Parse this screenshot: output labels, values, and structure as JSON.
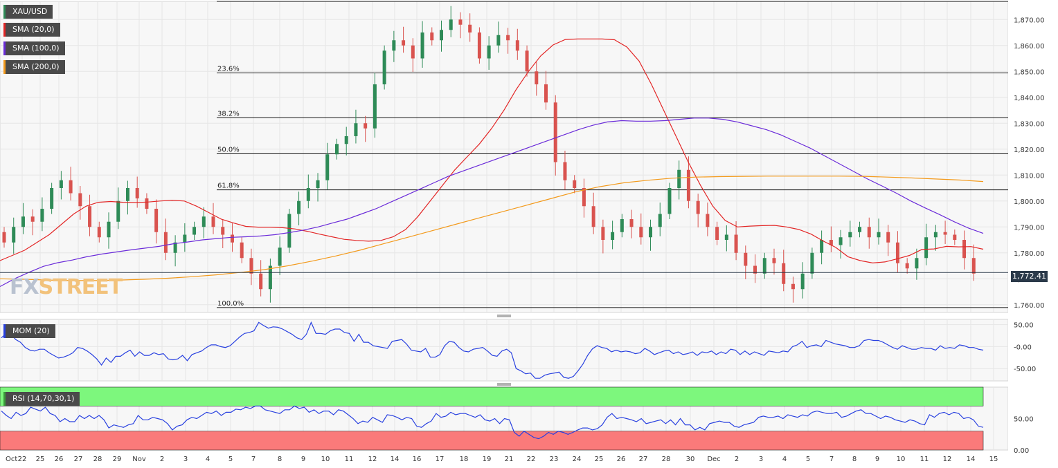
{
  "watermark": {
    "fx": "FX",
    "street": "STREET"
  },
  "legends": [
    {
      "label": "XAU/USD",
      "color": "#2e8b57"
    },
    {
      "label": "SMA (20,0)",
      "color": "#e32626"
    },
    {
      "label": "SMA (100,0)",
      "color": "#6a2bd9"
    },
    {
      "label": "SMA (200,0)",
      "color": "#f39a1c"
    },
    {
      "label": "MOM (20)",
      "color": "#2840e0"
    },
    {
      "label": "RSI (14,70,30,1)",
      "color": "#3a9a3a"
    }
  ],
  "price_tag": "1,772.41",
  "chart_data": [
    {
      "type": "candlestick",
      "series": [
        {
          "name": "XAU/USD",
          "color_up": "#2e8b57",
          "color_down": "#d9534f"
        },
        {
          "name": "SMA (20,0)",
          "color": "#e32626",
          "values": [
            1777,
            1779,
            1781,
            1784,
            1787,
            1791,
            1795,
            1798,
            1799.5,
            1799.8,
            1799.5,
            1799.4,
            1799.6,
            1800,
            1800.3,
            1800,
            1798,
            1795.5,
            1793,
            1791.5,
            1790.2,
            1789.9,
            1789.9,
            1789.7,
            1789.2,
            1788.3,
            1787.2,
            1786.2,
            1785.2,
            1784.8,
            1784.5,
            1784.8,
            1786.2,
            1789,
            1794,
            1800,
            1806,
            1812,
            1817,
            1822,
            1828,
            1835,
            1843,
            1850,
            1856,
            1860.2,
            1862.3,
            1862.5,
            1862.5,
            1862.5,
            1862.2,
            1859.4,
            1854,
            1845,
            1835,
            1825,
            1815,
            1806,
            1798,
            1792.5,
            1790,
            1790.3,
            1790.5,
            1790.6,
            1790,
            1789,
            1787.2,
            1784.5,
            1782.1,
            1778.5,
            1777,
            1776.1,
            1776.5,
            1777.7,
            1779,
            1781.3,
            1781.5,
            1782.5,
            1782.3,
            1782.4,
            1781.4
          ],
          "x_start": 0,
          "x_step": 1
        },
        {
          "name": "SMA (100,0)",
          "color": "#6a2bd9",
          "values": [
            1767,
            1770,
            1772.5,
            1774.8,
            1776.2,
            1777.2,
            1778.5,
            1779.5,
            1780.3,
            1781.1,
            1781.8,
            1782.5,
            1783.5,
            1784.2,
            1785,
            1785.5,
            1786,
            1786.2,
            1786.5,
            1787,
            1787.8,
            1788.8,
            1790,
            1791.5,
            1793,
            1795,
            1797,
            1799.5,
            1802,
            1804.5,
            1807,
            1809.5,
            1811.5,
            1813.5,
            1815.5,
            1817.5,
            1819.5,
            1821.5,
            1823.5,
            1825.5,
            1827.5,
            1829.2,
            1830.5,
            1831,
            1830.8,
            1830.8,
            1831,
            1831.5,
            1832,
            1832,
            1831.5,
            1830.5,
            1829,
            1827.5,
            1825.5,
            1823,
            1820.5,
            1817.5,
            1814.5,
            1811.5,
            1808.5,
            1805.8,
            1803,
            1800,
            1797.3,
            1794.7,
            1792,
            1789.5,
            1787.5
          ],
          "x_start": 0,
          "x_step": 1
        },
        {
          "name": "SMA (200,0)",
          "color": "#f39a1c",
          "values": [
            1770,
            1769.8,
            1769.5,
            1769.3,
            1769.3,
            1769.5,
            1769.8,
            1770.2,
            1770.8,
            1771.5,
            1772.4,
            1773.5,
            1775,
            1776.8,
            1778.8,
            1781,
            1783.5,
            1786,
            1788.5,
            1791,
            1793.5,
            1796,
            1798.5,
            1801,
            1803.5,
            1805.5,
            1807,
            1808,
            1808.8,
            1809.2,
            1809.4,
            1809.5,
            1809.6,
            1809.6,
            1809.6,
            1809.6,
            1809.5,
            1809.2,
            1808.9,
            1808.5,
            1808.1,
            1807.5
          ],
          "x_start": 0,
          "x_step": 1
        }
      ],
      "ylim": [
        1757,
        1877
      ],
      "y_ticks": [
        "1,760.00",
        "1,770.00",
        "1,780.00",
        "1,790.00",
        "1,800.00",
        "1,810.00",
        "1,820.00",
        "1,830.00",
        "1,840.00",
        "1,850.00",
        "1,860.00",
        "1,870.00"
      ],
      "y_tick_values": [
        1760,
        1770,
        1780,
        1790,
        1800,
        1810,
        1820,
        1830,
        1840,
        1850,
        1860,
        1870
      ],
      "fibonacci": [
        {
          "label": "",
          "value": 1877
        },
        {
          "label": "23.6%",
          "value": 1849.4
        },
        {
          "label": "38.2%",
          "value": 1832.1
        },
        {
          "label": "50.0%",
          "value": 1818.2
        },
        {
          "label": "61.8%",
          "value": 1804.3
        },
        {
          "label": "100.0%",
          "value": 1758.9
        }
      ],
      "last_price": 1772.41,
      "grid": true
    },
    {
      "type": "line",
      "series": [
        {
          "name": "MOM (20)",
          "color": "#2840e0",
          "values": [
            20,
            30,
            28,
            16,
            10,
            -2,
            -8,
            -10,
            -6,
            -6,
            -14,
            -20,
            -26,
            -24,
            -20,
            -14,
            -2,
            -4,
            -10,
            -18,
            -28,
            -42,
            -26,
            -36,
            -22,
            -22,
            -14,
            -8,
            -22,
            -12,
            -20,
            -20,
            -14,
            -18,
            -16,
            -28,
            -30,
            -28,
            -20,
            -32,
            -18,
            -14,
            -10,
            -2,
            4,
            4,
            0,
            -2,
            2,
            12,
            22,
            30,
            32,
            36,
            55,
            48,
            42,
            45,
            44,
            40,
            34,
            28,
            20,
            16,
            28,
            55,
            30,
            30,
            28,
            36,
            40,
            40,
            32,
            30,
            12,
            28,
            10,
            10,
            2,
            0,
            -2,
            -4,
            12,
            14,
            16,
            6,
            -8,
            -10,
            -12,
            -4,
            -24,
            -24,
            -18,
            2,
            12,
            10,
            -2,
            -10,
            -12,
            -6,
            -4,
            -2,
            -10,
            -20,
            -22,
            -10,
            -6,
            -14,
            -50,
            -55,
            -62,
            -60,
            -72,
            -72,
            -65,
            -62,
            -60,
            -58,
            -70,
            -72,
            -68,
            -55,
            -40,
            -20,
            -5,
            2,
            -2,
            -4,
            -12,
            -8,
            -12,
            -10,
            -12,
            -16,
            -14,
            -4,
            -10,
            -18,
            -14,
            -10,
            -8,
            -16,
            -12,
            -18,
            -16,
            -12,
            -20,
            -12,
            -14,
            -10,
            -18,
            -12,
            -16,
            -6,
            -8,
            -18,
            -10,
            -18,
            -12,
            -16,
            -20,
            -10,
            -12,
            -14,
            -10,
            -12,
            0,
            4,
            12,
            -2,
            2,
            4,
            0,
            14,
            10,
            6,
            4,
            2,
            -2,
            -2,
            2,
            14,
            16,
            14,
            14,
            10,
            4,
            -2,
            -6,
            2,
            -2,
            -6,
            -6,
            -2,
            -4,
            -4,
            -8,
            2,
            -4,
            -2,
            -4,
            4,
            2,
            -2,
            -2,
            -6,
            -8
          ]
        }
      ],
      "ylim": [
        -78,
        62
      ],
      "y_ticks": [
        "50.00",
        "-0.00",
        "-50.00"
      ],
      "y_tick_values": [
        50,
        0,
        -50
      ]
    },
    {
      "type": "line",
      "series": [
        {
          "name": "RSI (14,70,30,1)",
          "color": "#2840e0",
          "values": [
            62,
            55,
            50,
            60,
            55,
            58,
            68,
            65,
            62,
            68,
            58,
            55,
            45,
            50,
            45,
            45,
            55,
            50,
            55,
            50,
            55,
            48,
            35,
            40,
            38,
            36,
            40,
            42,
            55,
            48,
            48,
            52,
            50,
            48,
            42,
            32,
            38,
            40,
            48,
            52,
            50,
            55,
            60,
            58,
            62,
            55,
            60,
            60,
            65,
            64,
            68,
            66,
            70,
            70,
            64,
            62,
            60,
            58,
            64,
            64,
            70,
            66,
            68,
            60,
            64,
            58,
            62,
            62,
            56,
            64,
            62,
            56,
            50,
            42,
            46,
            44,
            52,
            48,
            44,
            56,
            55,
            52,
            48,
            52,
            50,
            38,
            36,
            42,
            46,
            58,
            52,
            54,
            60,
            56,
            58,
            58,
            55,
            52,
            56,
            48,
            46,
            50,
            42,
            50,
            48,
            28,
            22,
            30,
            25,
            20,
            18,
            22,
            28,
            25,
            30,
            28,
            25,
            28,
            32,
            35,
            35,
            32,
            34,
            40,
            52,
            58,
            50,
            52,
            50,
            48,
            45,
            50,
            42,
            44,
            46,
            48,
            42,
            48,
            40,
            50,
            40,
            40,
            32,
            36,
            32,
            42,
            44,
            46,
            44,
            44,
            38,
            36,
            40,
            42,
            44,
            52,
            54,
            52,
            52,
            54,
            50,
            56,
            54,
            52,
            56,
            54,
            60,
            62,
            60,
            58,
            58,
            60,
            52,
            54,
            58,
            62,
            64,
            58,
            58,
            54,
            50,
            54,
            52,
            48,
            46,
            44,
            48,
            46,
            42,
            40,
            56,
            52,
            58,
            60,
            56,
            60,
            58,
            50,
            52,
            48,
            38,
            36
          ]
        }
      ],
      "ylim": [
        0,
        100
      ],
      "overbought": 70,
      "oversold": 30,
      "y_ticks": [
        "50.00",
        "0.00"
      ],
      "y_tick_values": [
        50,
        0
      ]
    }
  ],
  "x_axis": {
    "labels": [
      "Oct",
      "22",
      "25",
      "26",
      "27",
      "28",
      "29",
      "Nov",
      "2",
      "3",
      "4",
      "5",
      "7",
      "8",
      "9",
      "10",
      "11",
      "12",
      "14",
      "16",
      "17",
      "18",
      "19",
      "21",
      "22",
      "23",
      "24",
      "25",
      "26",
      "27",
      "28",
      "30",
      "Dec",
      "2",
      "3",
      "4",
      "5",
      "7",
      "8",
      "9",
      "10",
      "11",
      "12",
      "14",
      "15"
    ]
  }
}
